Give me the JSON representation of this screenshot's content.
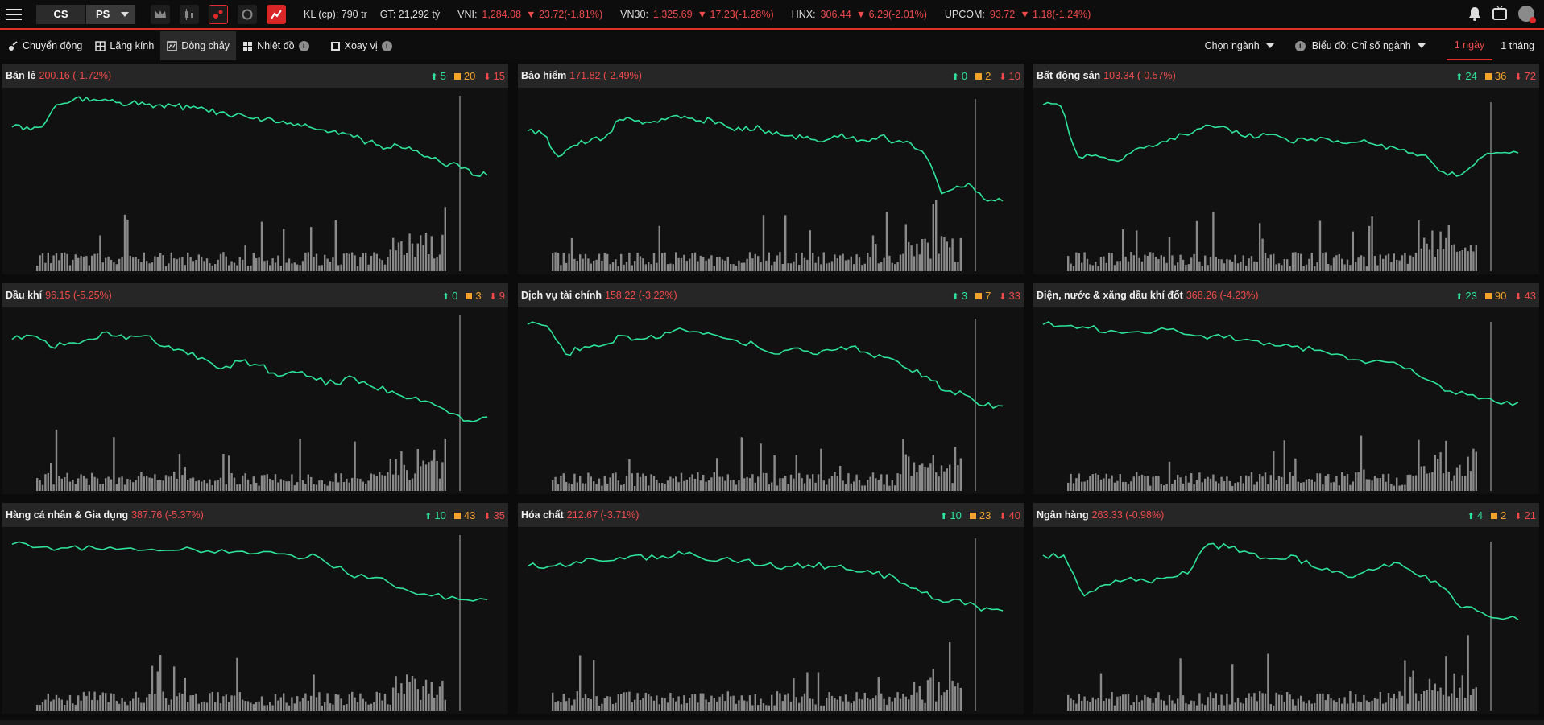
{
  "topbar": {
    "seg_cs": "CS",
    "seg_ps": "PS",
    "kl": "KL (cp): 790 tr",
    "gt": "GT: 21,292 tỷ",
    "indices": [
      {
        "label": "VNI:",
        "value": "1,284.08",
        "change": "23.72(-1.81%)"
      },
      {
        "label": "VN30:",
        "value": "1,325.69",
        "change": "17.23(-1.28%)"
      },
      {
        "label": "HNX:",
        "value": "306.44",
        "change": "6.29(-2.01%)"
      },
      {
        "label": "UPCOM:",
        "value": "93.72",
        "change": "1.18(-1.24%)"
      }
    ],
    "icons": [
      "bell-icon",
      "tv-icon",
      "avatar"
    ]
  },
  "toolbar": {
    "tabs": [
      "Chuyển động",
      "Lăng kính",
      "Dòng chảy",
      "Nhiệt đồ",
      "Xoay vị"
    ],
    "active_tab": "Dòng chảy",
    "industry_dropdown": "Chọn ngành",
    "chart_dropdown": "Biểu đồ: Chỉ số ngành",
    "ranges": [
      "1 ngày",
      "1 tháng"
    ],
    "active_range": "1 ngày"
  },
  "colors": {
    "up": "#2ee39a",
    "flat": "#f3a32b",
    "down": "#f04a4a",
    "accent": "#e02b2b",
    "line": "#2ee39a",
    "volume": "#8a8a8a"
  },
  "panels": [
    {
      "name": "Bán lẻ",
      "value": "200.16 (-1.72%)",
      "up": "5",
      "flat": "20",
      "down": "15"
    },
    {
      "name": "Bảo hiểm",
      "value": "171.82 (-2.49%)",
      "up": "0",
      "flat": "2",
      "down": "10"
    },
    {
      "name": "Bất động sản",
      "value": "103.34 (-0.57%)",
      "up": "24",
      "flat": "36",
      "down": "72"
    },
    {
      "name": "Dầu khí",
      "value": "96.15 (-5.25%)",
      "up": "0",
      "flat": "3",
      "down": "9"
    },
    {
      "name": "Dịch vụ tài chính",
      "value": "158.22 (-3.22%)",
      "up": "3",
      "flat": "7",
      "down": "33"
    },
    {
      "name": "Điện, nước & xăng dầu khí đốt",
      "value": "368.26 (-4.23%)",
      "up": "23",
      "flat": "90",
      "down": "43"
    },
    {
      "name": "Hàng cá nhân & Gia dụng",
      "value": "387.76 (-5.37%)",
      "up": "10",
      "flat": "43",
      "down": "35"
    },
    {
      "name": "Hóa chất",
      "value": "212.67 (-3.71%)",
      "up": "10",
      "flat": "23",
      "down": "40"
    },
    {
      "name": "Ngân hàng",
      "value": "263.33 (-0.98%)",
      "up": "4",
      "flat": "2",
      "down": "21"
    }
  ],
  "chart_data": [
    {
      "type": "line",
      "title": "Bán lẻ",
      "series": [
        {
          "values": [
            0.6,
            0.6,
            0.6,
            0.9,
            0.95,
            1.0,
            0.96,
            0.93,
            0.92,
            0.9,
            0.9,
            0.88,
            0.86,
            0.84,
            0.8,
            0.76,
            0.72,
            0.7,
            0.66,
            0.62,
            0.6,
            0.56,
            0.5,
            0.46,
            0.4,
            0.3,
            0.35,
            0.28,
            0.2,
            0.1,
            0.1,
            -0.05,
            -0.05
          ]
        }
      ]
    },
    {
      "type": "line",
      "title": "Bảo hiểm",
      "series": [
        {
          "values": [
            0.55,
            0.5,
            0.2,
            0.35,
            0.4,
            0.45,
            0.7,
            0.68,
            0.66,
            0.7,
            0.72,
            0.68,
            0.7,
            0.6,
            0.55,
            0.62,
            0.5,
            0.48,
            0.45,
            0.4,
            0.48,
            0.45,
            0.42,
            0.48,
            0.4,
            0.38,
            0.2,
            -0.3,
            -0.2,
            -0.2,
            -0.4,
            -0.4
          ]
        }
      ]
    },
    {
      "type": "line",
      "title": "Bất động sản",
      "series": [
        {
          "values": [
            0.9,
            0.88,
            0.2,
            0.22,
            0.15,
            0.25,
            0.35,
            0.4,
            0.5,
            0.58,
            0.6,
            0.55,
            0.45,
            0.5,
            0.4,
            0.42,
            0.45,
            0.38,
            0.4,
            0.35,
            0.32,
            0.25,
            0.15,
            -0.05,
            0.0,
            0.2,
            0.25,
            0.25
          ]
        }
      ]
    },
    {
      "type": "line",
      "title": "Dầu khí",
      "series": [
        {
          "values": [
            0.7,
            0.75,
            0.6,
            0.65,
            0.7,
            0.8,
            0.7,
            0.75,
            0.6,
            0.55,
            0.45,
            0.3,
            0.4,
            0.35,
            0.2,
            0.25,
            0.15,
            0.1,
            0.18,
            0.05,
            0.0,
            -0.1,
            -0.15,
            -0.3,
            -0.4,
            -0.35
          ]
        }
      ]
    },
    {
      "type": "line",
      "title": "Dịch vụ tài chính",
      "series": [
        {
          "values": [
            0.9,
            0.88,
            0.5,
            0.6,
            0.62,
            0.75,
            0.7,
            0.72,
            0.85,
            0.8,
            0.75,
            0.68,
            0.62,
            0.5,
            0.58,
            0.5,
            0.55,
            0.6,
            0.5,
            0.45,
            0.3,
            0.2,
            0.0,
            -0.05,
            -0.2,
            -0.2
          ]
        }
      ]
    },
    {
      "type": "line",
      "title": "Điện, nước & xăng dầu khí đốt",
      "series": [
        {
          "values": [
            0.9,
            0.88,
            0.85,
            0.82,
            0.8,
            0.82,
            0.8,
            0.75,
            0.72,
            0.7,
            0.65,
            0.6,
            0.55,
            0.5,
            0.42,
            0.4,
            0.3,
            0.15,
            0.0,
            -0.05,
            -0.15,
            -0.15
          ]
        }
      ]
    },
    {
      "type": "line",
      "title": "Hàng cá nhân & Gia dụng",
      "series": [
        {
          "values": [
            0.9,
            0.86,
            0.85,
            0.84,
            0.84,
            0.83,
            0.82,
            0.81,
            0.8,
            0.8,
            0.75,
            0.72,
            0.5,
            0.45,
            0.3,
            0.2,
            0.15,
            0.15
          ]
        }
      ]
    },
    {
      "type": "line",
      "title": "Hóa chất",
      "series": [
        {
          "values": [
            0.6,
            0.6,
            0.62,
            0.7,
            0.68,
            0.75,
            0.7,
            0.8,
            0.72,
            0.7,
            0.68,
            0.62,
            0.6,
            0.62,
            0.6,
            0.55,
            0.5,
            0.45,
            0.3,
            0.15,
            0.15,
            0.0,
            0.0
          ]
        }
      ]
    },
    {
      "type": "line",
      "title": "Ngân hàng",
      "series": [
        {
          "values": [
            0.75,
            0.75,
            0.2,
            0.35,
            0.42,
            0.4,
            0.45,
            0.5,
            0.9,
            0.85,
            0.78,
            0.7,
            0.75,
            0.6,
            0.52,
            0.45,
            0.55,
            0.65,
            0.5,
            0.4,
            0.1,
            0.0,
            -0.1,
            -0.12
          ]
        }
      ]
    }
  ]
}
